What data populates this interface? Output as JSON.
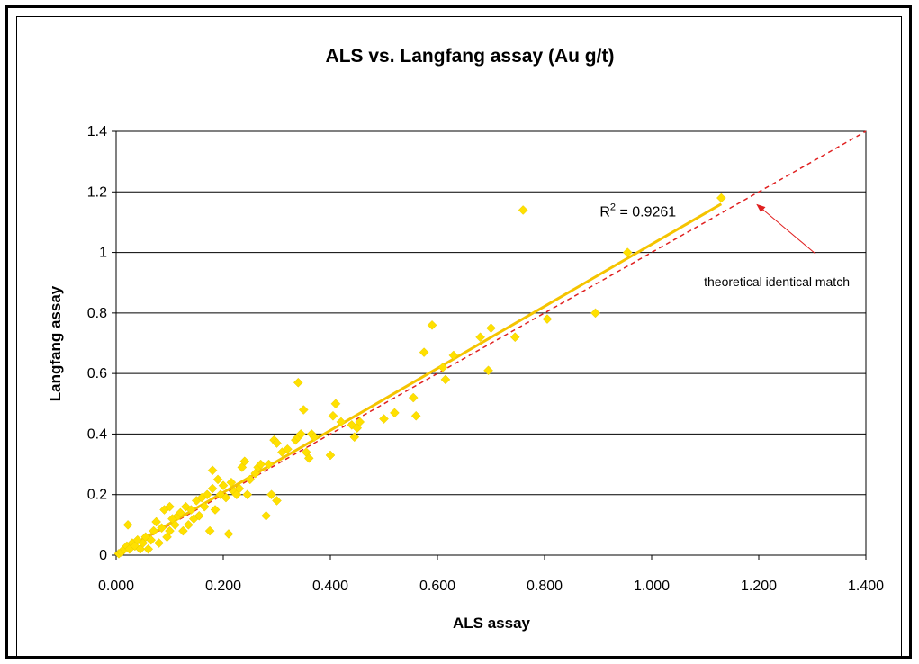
{
  "chart_data": {
    "type": "scatter",
    "title": "ALS vs. Langfang assay (Au g/t)",
    "xlabel": "ALS assay",
    "ylabel": "Langfang assay",
    "xlim": [
      0,
      1.4
    ],
    "ylim": [
      0,
      1.4
    ],
    "x_ticks": [
      "0.000",
      "0.200",
      "0.400",
      "0.600",
      "0.800",
      "1.000",
      "1.200",
      "1.400"
    ],
    "y_ticks": [
      "0",
      "0.2",
      "0.4",
      "0.6",
      "0.8",
      "1",
      "1.2",
      "1.4"
    ],
    "grid": "horizontal",
    "legend": "none",
    "colors": {
      "points": "#FFE000",
      "trendline": "#F5C400",
      "identity": "#E02020",
      "arrow": "#E02020"
    },
    "series": [
      {
        "marker": "diamond",
        "x": [
          0.005,
          0.01,
          0.015,
          0.02,
          0.022,
          0.025,
          0.03,
          0.035,
          0.04,
          0.045,
          0.05,
          0.055,
          0.06,
          0.065,
          0.07,
          0.075,
          0.08,
          0.085,
          0.09,
          0.095,
          0.1,
          0.1,
          0.105,
          0.11,
          0.115,
          0.12,
          0.125,
          0.13,
          0.135,
          0.14,
          0.145,
          0.15,
          0.155,
          0.16,
          0.165,
          0.17,
          0.175,
          0.18,
          0.18,
          0.185,
          0.19,
          0.195,
          0.2,
          0.205,
          0.21,
          0.215,
          0.22,
          0.225,
          0.23,
          0.235,
          0.24,
          0.245,
          0.25,
          0.26,
          0.265,
          0.27,
          0.28,
          0.285,
          0.29,
          0.295,
          0.3,
          0.3,
          0.31,
          0.32,
          0.335,
          0.34,
          0.34,
          0.345,
          0.35,
          0.355,
          0.36,
          0.365,
          0.37,
          0.4,
          0.405,
          0.41,
          0.42,
          0.44,
          0.445,
          0.45,
          0.455,
          0.5,
          0.52,
          0.555,
          0.56,
          0.575,
          0.59,
          0.61,
          0.615,
          0.63,
          0.68,
          0.695,
          0.7,
          0.745,
          0.76,
          0.805,
          0.895,
          0.955,
          1.13
        ],
        "y": [
          0.005,
          0.01,
          0.02,
          0.03,
          0.1,
          0.02,
          0.04,
          0.03,
          0.05,
          0.02,
          0.04,
          0.06,
          0.02,
          0.05,
          0.08,
          0.11,
          0.04,
          0.09,
          0.15,
          0.06,
          0.16,
          0.08,
          0.12,
          0.1,
          0.13,
          0.14,
          0.08,
          0.16,
          0.1,
          0.15,
          0.12,
          0.18,
          0.13,
          0.19,
          0.16,
          0.2,
          0.08,
          0.22,
          0.28,
          0.15,
          0.25,
          0.2,
          0.23,
          0.19,
          0.07,
          0.24,
          0.21,
          0.2,
          0.22,
          0.29,
          0.31,
          0.2,
          0.25,
          0.27,
          0.29,
          0.3,
          0.13,
          0.3,
          0.2,
          0.38,
          0.37,
          0.18,
          0.34,
          0.35,
          0.38,
          0.39,
          0.57,
          0.4,
          0.48,
          0.34,
          0.32,
          0.4,
          0.39,
          0.33,
          0.46,
          0.5,
          0.44,
          0.43,
          0.39,
          0.42,
          0.44,
          0.45,
          0.47,
          0.52,
          0.46,
          0.67,
          0.76,
          0.62,
          0.58,
          0.66,
          0.72,
          0.61,
          0.75,
          0.72,
          1.14,
          0.78,
          0.8,
          1.0,
          1.18
        ]
      }
    ],
    "trendline": {
      "type": "linear",
      "x_range": [
        0,
        1.13
      ],
      "slope": 1.025,
      "intercept": 0.002,
      "label": "R",
      "label_sup": "2",
      "label_rest": " = 0.9261"
    },
    "identity_line": {
      "x_range": [
        0,
        1.4
      ]
    },
    "annotation": {
      "text": "theoretical identical match",
      "points_to": [
        1.19,
        1.17
      ]
    }
  }
}
